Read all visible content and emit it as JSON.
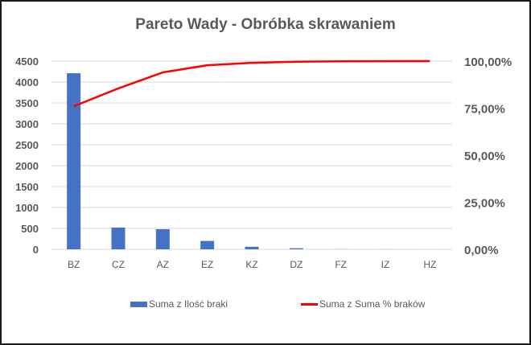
{
  "chart_data": {
    "type": "bar",
    "combo": "bar+line (pareto)",
    "title": "Pareto Wady - Obróbka skrawaniem",
    "xlabel": "",
    "ylabel": "",
    "categories": [
      "BZ",
      "CZ",
      "AZ",
      "EZ",
      "KZ",
      "DZ",
      "FZ",
      "IZ",
      "HZ"
    ],
    "series": [
      {
        "name": "Suma z Ilość braki",
        "type": "bar",
        "axis": "left",
        "color": "#4472c4",
        "values": [
          4210,
          520,
          480,
          200,
          60,
          25,
          3,
          2,
          1
        ]
      },
      {
        "name": "Suma z Suma % braków",
        "type": "line",
        "axis": "right",
        "color": "#ff0000",
        "values": [
          0.76,
          0.855,
          0.94,
          0.978,
          0.991,
          0.997,
          0.999,
          0.9995,
          1.0
        ]
      }
    ],
    "ylim": [
      0,
      4500
    ],
    "yticks": [
      "0",
      "500",
      "1000",
      "1500",
      "2000",
      "2500",
      "3000",
      "3500",
      "4000",
      "4500"
    ],
    "y2lim": [
      0,
      1
    ],
    "y2ticks": [
      "0,00%",
      "25,00%",
      "50,00%",
      "75,00%",
      "100,00%"
    ],
    "grid": true,
    "legend_position": "bottom"
  },
  "legend": {
    "bar_label": "Suma z Ilość braki",
    "line_label": "Suma z Suma % braków"
  }
}
